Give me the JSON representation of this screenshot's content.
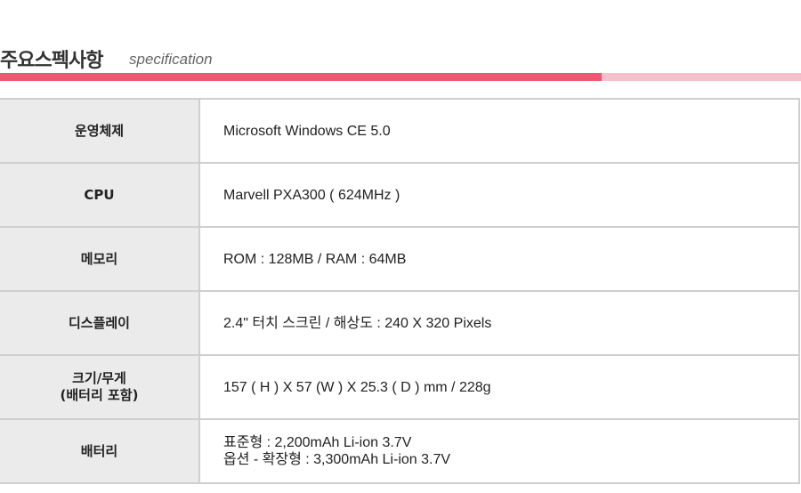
{
  "header": {
    "title": "주요스펙사항",
    "subtitle": "specification"
  },
  "colors": {
    "accent": "#ef5670",
    "accent_light": "#f6c0ca",
    "label_bg": "#ebebeb",
    "border": "#cfcfcf"
  },
  "specs": [
    {
      "label": "운영체제",
      "value": [
        "Microsoft Windows CE 5.0"
      ]
    },
    {
      "label": "CPU",
      "value": [
        "Marvell PXA300 ( 624MHz )"
      ]
    },
    {
      "label": "메모리",
      "value": [
        "ROM : 128MB  / RAM : 64MB"
      ]
    },
    {
      "label": "디스플레이",
      "value": [
        "2.4\" 터치 스크린 / 해상도 : 240 X 320 Pixels"
      ]
    },
    {
      "label": [
        "크기/무게",
        "(배터리 포함)"
      ],
      "value": [
        "157 ( H ) X 57 (W ) X 25.3 ( D ) mm / 228g"
      ]
    },
    {
      "label": "배터리",
      "value": [
        "표준형 : 2,200mAh Li-ion 3.7V",
        "옵션 - 확장형 : 3,300mAh Li-ion 3.7V"
      ]
    }
  ]
}
